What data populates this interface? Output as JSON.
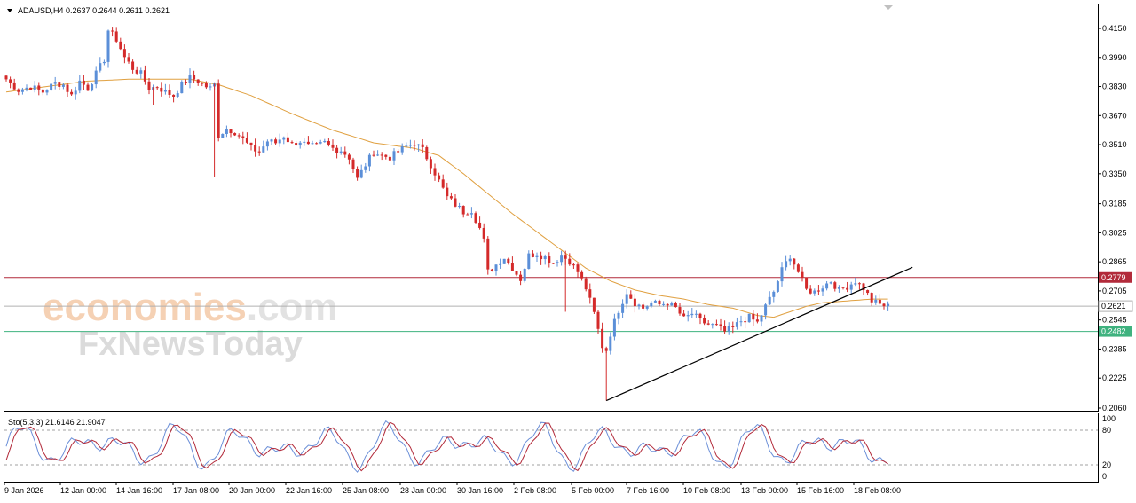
{
  "header": {
    "symbol": "ADAUSD,H4",
    "open": "0.2637",
    "high": "0.2644",
    "low": "0.2611",
    "close": "0.2621"
  },
  "watermark": {
    "line1_a": "economies",
    "line1_b": ".com",
    "line2": "FxNewsToday"
  },
  "stochastic": {
    "label": "Sto(5,3,3)",
    "main_value": "21.6146",
    "signal_value": "21.9047",
    "levels": [
      100,
      80,
      20,
      0
    ],
    "level_labels": [
      "100",
      "80",
      "20",
      "0"
    ]
  },
  "colors": {
    "bull": "#5b8fd8",
    "bear": "#d42a2a",
    "ma": "#e0a040",
    "resistance": "#b22a3a",
    "support": "#3fb27f",
    "trendline": "#000000",
    "price_line": "#b0b0b0",
    "sto_main": "#6b8fd8",
    "sto_signal": "#b22a3a"
  },
  "chart_data": [
    {
      "type": "candlestick",
      "title": "ADAUSD,H4",
      "ylim": [
        0.206,
        0.425
      ],
      "y_ticks": [
        "0.4150",
        "0.3990",
        "0.3830",
        "0.3670",
        "0.3510",
        "0.3350",
        "0.3185",
        "0.3025",
        "0.2865",
        "0.2705",
        "0.2545",
        "0.2385",
        "0.2225",
        "0.2060"
      ],
      "x_ticks": [
        "9 Jan 2026",
        "12 Jan 00:00",
        "14 Jan 16:00",
        "17 Jan 08:00",
        "20 Jan 00:00",
        "22 Jan 16:00",
        "25 Jan 08:00",
        "28 Jan 00:00",
        "30 Jan 16:00",
        "2 Feb 08:00",
        "5 Feb 00:00",
        "7 Feb 16:00",
        "10 Feb 08:00",
        "13 Feb 00:00",
        "15 Feb 16:00",
        "18 Feb 08:00"
      ],
      "close_path": [
        [
          0,
          0.387
        ],
        [
          3,
          0.381
        ],
        [
          6,
          0.383
        ],
        [
          9,
          0.38
        ],
        [
          12,
          0.385
        ],
        [
          14,
          0.384
        ],
        [
          16,
          0.378
        ],
        [
          18,
          0.386
        ],
        [
          20,
          0.382
        ],
        [
          22,
          0.39
        ],
        [
          24,
          0.398
        ],
        [
          25,
          0.414
        ],
        [
          27,
          0.409
        ],
        [
          29,
          0.399
        ],
        [
          31,
          0.393
        ],
        [
          33,
          0.39
        ],
        [
          35,
          0.382
        ],
        [
          37,
          0.383
        ],
        [
          39,
          0.38
        ],
        [
          41,
          0.378
        ],
        [
          43,
          0.384
        ],
        [
          45,
          0.388
        ],
        [
          47,
          0.386
        ],
        [
          49,
          0.383
        ],
        [
          50,
          0.382
        ],
        [
          51,
          0.384
        ],
        [
          52,
          0.356
        ],
        [
          54,
          0.36
        ],
        [
          56,
          0.358
        ],
        [
          58,
          0.354
        ],
        [
          60,
          0.349
        ],
        [
          62,
          0.347
        ],
        [
          64,
          0.353
        ],
        [
          66,
          0.352
        ],
        [
          68,
          0.356
        ],
        [
          70,
          0.351
        ],
        [
          72,
          0.353
        ],
        [
          74,
          0.35
        ],
        [
          76,
          0.35
        ],
        [
          78,
          0.352
        ],
        [
          80,
          0.349
        ],
        [
          82,
          0.348
        ],
        [
          84,
          0.344
        ],
        [
          86,
          0.332
        ],
        [
          88,
          0.34
        ],
        [
          90,
          0.347
        ],
        [
          92,
          0.345
        ],
        [
          94,
          0.344
        ],
        [
          96,
          0.347
        ],
        [
          98,
          0.35
        ],
        [
          100,
          0.352
        ],
        [
          102,
          0.348
        ],
        [
          104,
          0.34
        ],
        [
          106,
          0.331
        ],
        [
          108,
          0.322
        ],
        [
          110,
          0.318
        ],
        [
          112,
          0.314
        ],
        [
          114,
          0.315
        ],
        [
          116,
          0.305
        ],
        [
          117,
          0.298
        ],
        [
          118,
          0.281
        ],
        [
          120,
          0.285
        ],
        [
          122,
          0.289
        ],
        [
          124,
          0.283
        ],
        [
          126,
          0.277
        ],
        [
          128,
          0.29
        ],
        [
          130,
          0.291
        ],
        [
          132,
          0.289
        ],
        [
          134,
          0.286
        ],
        [
          136,
          0.29
        ],
        [
          138,
          0.287
        ],
        [
          140,
          0.281
        ],
        [
          142,
          0.272
        ],
        [
          144,
          0.258
        ],
        [
          146,
          0.24
        ],
        [
          147,
          0.238
        ],
        [
          148,
          0.247
        ],
        [
          150,
          0.26
        ],
        [
          152,
          0.27
        ],
        [
          154,
          0.264
        ],
        [
          156,
          0.261
        ],
        [
          158,
          0.264
        ],
        [
          160,
          0.263
        ],
        [
          162,
          0.264
        ],
        [
          164,
          0.261
        ],
        [
          166,
          0.255
        ],
        [
          168,
          0.258
        ],
        [
          170,
          0.254
        ],
        [
          172,
          0.252
        ],
        [
          174,
          0.251
        ],
        [
          176,
          0.248
        ],
        [
          178,
          0.25
        ],
        [
          180,
          0.254
        ],
        [
          182,
          0.256
        ],
        [
          184,
          0.253
        ],
        [
          186,
          0.262
        ],
        [
          188,
          0.27
        ],
        [
          190,
          0.282
        ],
        [
          192,
          0.29
        ],
        [
          194,
          0.281
        ],
        [
          196,
          0.271
        ],
        [
          198,
          0.27
        ],
        [
          200,
          0.273
        ],
        [
          202,
          0.276
        ],
        [
          204,
          0.271
        ],
        [
          206,
          0.273
        ],
        [
          208,
          0.276
        ],
        [
          210,
          0.272
        ],
        [
          212,
          0.265
        ],
        [
          214,
          0.263
        ],
        [
          216,
          0.262
        ]
      ],
      "moving_average": [
        [
          0,
          0.38
        ],
        [
          10,
          0.383
        ],
        [
          20,
          0.386
        ],
        [
          30,
          0.387
        ],
        [
          45,
          0.387
        ],
        [
          52,
          0.384
        ],
        [
          60,
          0.378
        ],
        [
          70,
          0.368
        ],
        [
          80,
          0.359
        ],
        [
          90,
          0.352
        ],
        [
          100,
          0.349
        ],
        [
          106,
          0.345
        ],
        [
          112,
          0.335
        ],
        [
          118,
          0.324
        ],
        [
          124,
          0.313
        ],
        [
          130,
          0.303
        ],
        [
          136,
          0.293
        ],
        [
          142,
          0.283
        ],
        [
          148,
          0.276
        ],
        [
          154,
          0.271
        ],
        [
          160,
          0.268
        ],
        [
          166,
          0.266
        ],
        [
          172,
          0.263
        ],
        [
          178,
          0.261
        ],
        [
          184,
          0.257
        ],
        [
          188,
          0.256
        ],
        [
          192,
          0.259
        ],
        [
          196,
          0.262
        ],
        [
          200,
          0.264
        ],
        [
          206,
          0.265
        ],
        [
          212,
          0.266
        ],
        [
          216,
          0.266
        ]
      ],
      "candle_count": 217,
      "horizontal_lines": [
        {
          "value": 0.2779,
          "label": "0.2779",
          "color": "#b22a3a"
        },
        {
          "value": 0.2482,
          "label": "0.2482",
          "color": "#3fb27f"
        }
      ],
      "current_price": {
        "value": 0.2621,
        "label": "0.2621"
      },
      "trendline": {
        "from": [
          147,
          0.2101
        ],
        "to": [
          222,
          0.2835
        ]
      }
    },
    {
      "type": "line",
      "title": "Sto(5,3,3)",
      "ylim": [
        0,
        100
      ],
      "series": [
        {
          "name": "main",
          "value": 21.6146
        },
        {
          "name": "signal",
          "value": 21.9047
        }
      ]
    }
  ]
}
